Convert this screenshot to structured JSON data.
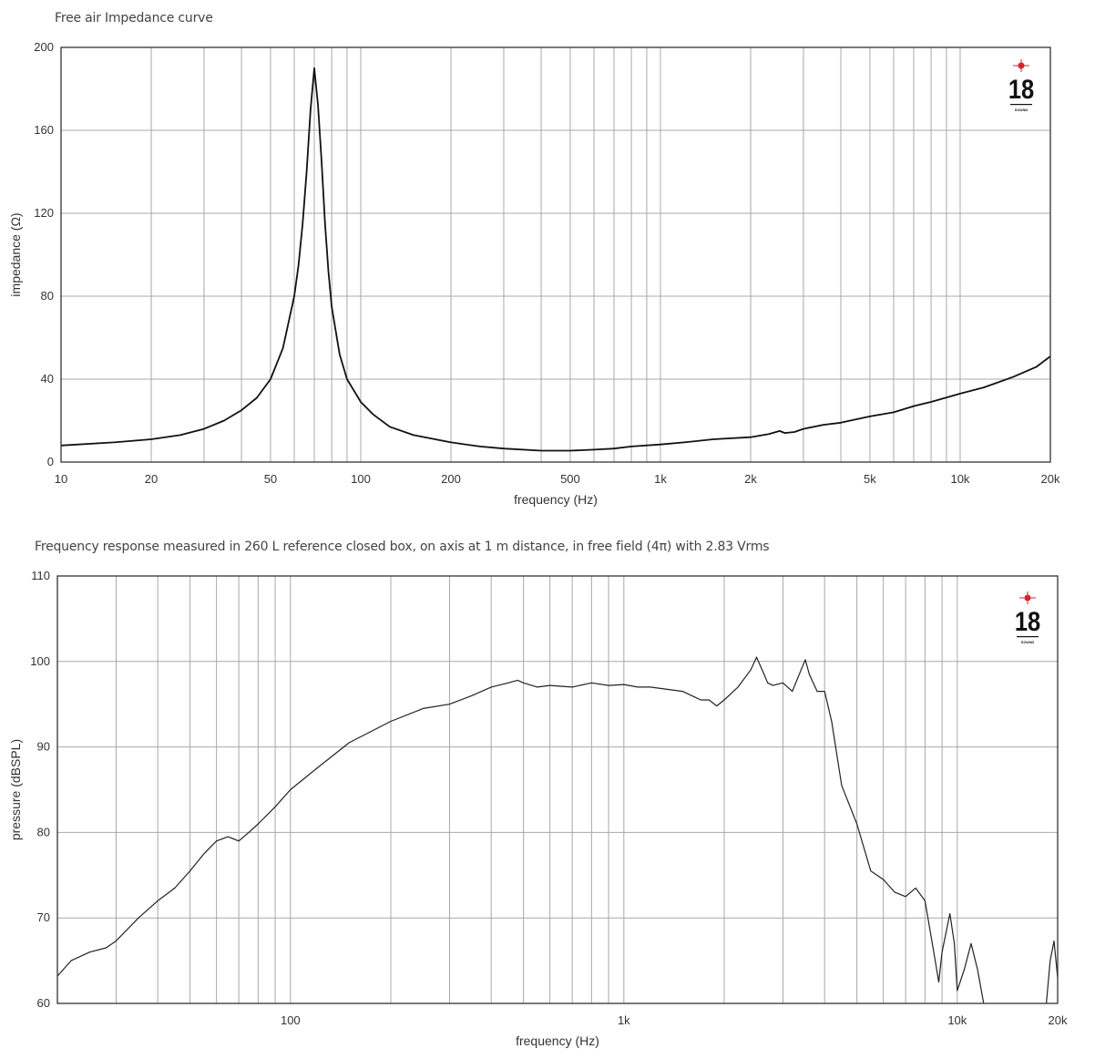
{
  "charts": [
    {
      "title": "Free air Impedance curve",
      "logo": {
        "number": "18",
        "subtext": "SOUND"
      }
    },
    {
      "title": "Frequency response measured in 260 L reference closed box, on axis at 1 m distance, in free field (4π) with 2.83 Vrms",
      "logo": {
        "number": "18",
        "subtext": "SOUND"
      }
    }
  ],
  "chart_data": [
    {
      "type": "line",
      "title": "Free air Impedance curve",
      "xlabel": "frequency (Hz)",
      "ylabel": "impedance (Ω)",
      "xscale": "log",
      "xlim": [
        10,
        20000
      ],
      "ylim": [
        0,
        200
      ],
      "xticks": [
        10,
        20,
        50,
        100,
        200,
        500,
        1000,
        2000,
        5000,
        10000,
        20000
      ],
      "xtick_labels": [
        "10",
        "20",
        "50",
        "100",
        "200",
        "500",
        "1k",
        "2k",
        "5k",
        "10k",
        "20k"
      ],
      "yticks": [
        0,
        40,
        80,
        120,
        160,
        200
      ],
      "ytick_labels": [
        "0",
        "40",
        "80",
        "120",
        "160",
        "200"
      ],
      "grid": true,
      "line_color": "#111111",
      "series": [
        {
          "x": [
            10,
            15,
            20,
            25,
            30,
            35,
            40,
            45,
            50,
            55,
            60,
            62,
            64,
            66,
            68,
            70,
            72,
            74,
            76,
            78,
            80,
            85,
            90,
            100,
            110,
            125,
            150,
            200,
            250,
            300,
            400,
            500,
            600,
            700,
            800,
            1000,
            1200,
            1500,
            2000,
            2300,
            2500,
            2600,
            2800,
            3000,
            3500,
            4000,
            5000,
            6000,
            7000,
            8000,
            10000,
            12000,
            15000,
            18000,
            20000
          ],
          "y": [
            8,
            9.5,
            11,
            13,
            16,
            20,
            25,
            31,
            40,
            55,
            80,
            95,
            115,
            140,
            170,
            190,
            172,
            145,
            115,
            92,
            75,
            52,
            40,
            29,
            23,
            17,
            13,
            9.5,
            7.5,
            6.5,
            5.5,
            5.5,
            6,
            6.5,
            7.5,
            8.5,
            9.5,
            11,
            12,
            13.5,
            15,
            14,
            14.5,
            16,
            18,
            19,
            22,
            24,
            27,
            29,
            33,
            36,
            41,
            46,
            51
          ]
        }
      ]
    },
    {
      "type": "line",
      "title": "Frequency response measured in 260 L reference closed box, on axis at 1 m distance, in free field (4π) with 2.83 Vrms",
      "xlabel": "frequency (Hz)",
      "ylabel": "pressure (dBSPL)",
      "xscale": "log",
      "xlim": [
        20,
        20000
      ],
      "ylim": [
        60,
        110
      ],
      "xticks": [
        100,
        1000,
        10000,
        20000
      ],
      "xtick_labels": [
        "100",
        "1k",
        "10k",
        "20k"
      ],
      "yticks": [
        60,
        70,
        80,
        90,
        100,
        110
      ],
      "ytick_labels": [
        "60",
        "70",
        "80",
        "90",
        "100",
        "110"
      ],
      "grid": true,
      "line_color": "#222222",
      "series": [
        {
          "x": [
            20,
            22,
            25,
            28,
            30,
            35,
            40,
            45,
            50,
            55,
            60,
            65,
            70,
            75,
            80,
            90,
            100,
            120,
            150,
            200,
            250,
            300,
            350,
            400,
            450,
            480,
            500,
            550,
            600,
            700,
            800,
            900,
            1000,
            1100,
            1200,
            1500,
            1700,
            1800,
            1900,
            2000,
            2200,
            2400,
            2500,
            2600,
            2700,
            2800,
            3000,
            3200,
            3400,
            3500,
            3600,
            3800,
            4000,
            4200,
            4500,
            5000,
            5500,
            6000,
            6500,
            7000,
            7500,
            8000,
            8500,
            8800,
            9000,
            9500,
            9800,
            10000,
            10500,
            11000,
            11500,
            12000
          ],
          "y": [
            63.2,
            65,
            66,
            66.5,
            67.3,
            70,
            72,
            73.5,
            75.5,
            77.5,
            79,
            79.5,
            79,
            80,
            81,
            83,
            85,
            87.5,
            90.5,
            93,
            94.5,
            95,
            96,
            97,
            97.5,
            97.8,
            97.5,
            97,
            97.2,
            97,
            97.5,
            97.2,
            97.3,
            97,
            97,
            96.5,
            95.5,
            95.5,
            94.8,
            95.5,
            97,
            99,
            100.5,
            99,
            97.5,
            97.2,
            97.5,
            96.5,
            99,
            100.2,
            98.5,
            96.5,
            96.5,
            93,
            85.5,
            81,
            75.5,
            74.5,
            73,
            72.5,
            73.5,
            72,
            66,
            62.5,
            66,
            70.5,
            67,
            61.5,
            64,
            67,
            64,
            60
          ]
        },
        {
          "x": [
            18500,
            19000,
            19500,
            20000
          ],
          "y": [
            60,
            65,
            67.3,
            63
          ]
        }
      ]
    }
  ]
}
